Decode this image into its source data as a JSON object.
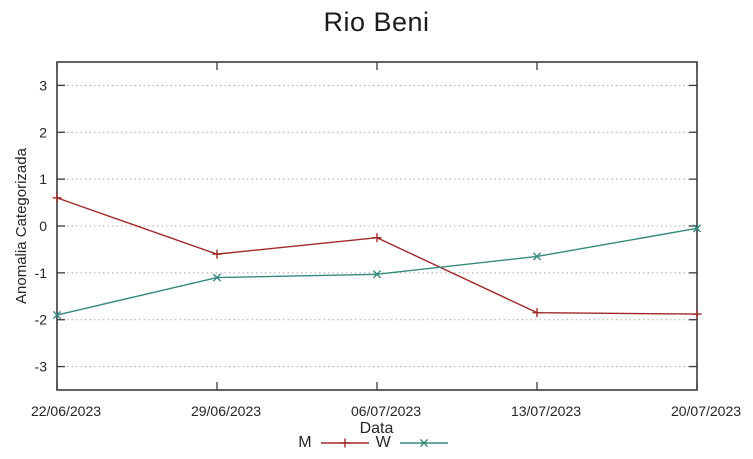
{
  "chart_data": {
    "type": "line",
    "title": "Rio Beni",
    "xlabel": "Data",
    "ylabel": "Anomalia Categorizada",
    "categories": [
      "22/06/2023",
      "29/06/2023",
      "06/07/2023",
      "13/07/2023",
      "20/07/2023"
    ],
    "series": [
      {
        "name": "M",
        "marker": "plus",
        "color": "#a02828",
        "values": [
          0.6,
          -0.6,
          -0.25,
          -1.85,
          -1.88
        ]
      },
      {
        "name": "W",
        "marker": "cross",
        "color": "#35897f",
        "values": [
          -1.9,
          -1.1,
          -1.03,
          -0.65,
          -0.05
        ]
      }
    ],
    "yticks": [
      3,
      2,
      1,
      0,
      -1,
      -2,
      -3
    ],
    "ylim": [
      -3.5,
      3.5
    ],
    "grid": "horizontal-dashed",
    "legend_position": "bottom-center"
  },
  "colors": {
    "background": "#ffffff",
    "axis": "#3c3c3c",
    "grid": "#a8a8a8",
    "text": "#262626",
    "series_m": "#a02828",
    "series_w": "#35897f"
  }
}
